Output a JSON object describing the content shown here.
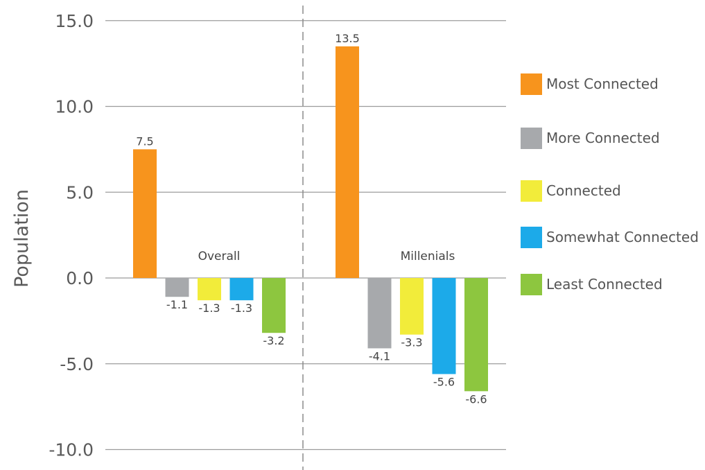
{
  "chart_data": {
    "type": "bar",
    "ylabel": "Population",
    "xlabel": "",
    "ylim": [
      -10,
      15
    ],
    "yticks": [
      15,
      10,
      5,
      0,
      -5,
      -10
    ],
    "ytick_labels": [
      "15.0",
      "10.0",
      "5.0",
      "0.0",
      "-5.0",
      "-10.0"
    ],
    "grid": true,
    "legend_position": "right",
    "categories": [
      "Overall",
      "Millenials"
    ],
    "series": [
      {
        "name": "Most Connected",
        "color": "#F7941D",
        "values": [
          7.5,
          13.5
        ],
        "labels": [
          "7.5",
          "13.5"
        ]
      },
      {
        "name": "More Connected",
        "color": "#A7A9AC",
        "values": [
          -1.1,
          -4.1
        ],
        "labels": [
          "-1.1",
          "-4.1"
        ]
      },
      {
        "name": "Connected",
        "color": "#F2EC3A",
        "values": [
          -1.3,
          -3.3
        ],
        "labels": [
          "-1.3",
          "-3.3"
        ]
      },
      {
        "name": "Somewhat Connected",
        "color": "#1CAAE9",
        "values": [
          -1.3,
          -5.6
        ],
        "labels": [
          "-1.3",
          "-5.6"
        ]
      },
      {
        "name": "Least Connected",
        "color": "#8DC63F",
        "values": [
          -3.2,
          -6.6
        ],
        "labels": [
          "-3.2",
          "-6.6"
        ]
      }
    ]
  }
}
